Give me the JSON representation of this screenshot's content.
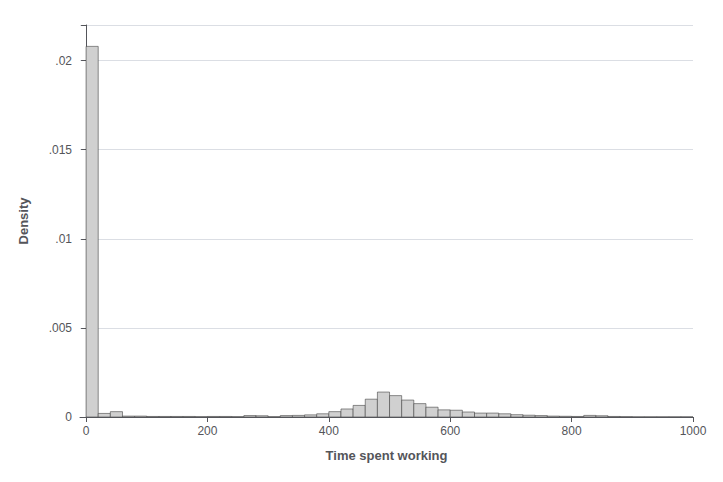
{
  "chart_data": {
    "type": "histogram",
    "xlabel": "Time spent working",
    "ylabel": "Density",
    "bins": [
      0,
      20,
      40,
      60,
      80,
      100,
      120,
      140,
      160,
      180,
      200,
      220,
      240,
      260,
      280,
      300,
      320,
      340,
      360,
      380,
      400,
      420,
      440,
      460,
      480,
      500,
      520,
      540,
      560,
      580,
      600,
      620,
      640,
      660,
      680,
      700,
      720,
      740,
      760,
      780,
      800,
      820,
      840,
      860,
      880,
      900,
      920,
      940,
      960,
      980,
      1000
    ],
    "values": [
      0.0208,
      0.0002,
      0.0003,
      5e-05,
      5e-05,
      3e-05,
      3e-05,
      3e-05,
      3e-05,
      2e-05,
      3e-05,
      3e-05,
      2e-05,
      8e-05,
      7e-05,
      2e-05,
      8e-05,
      9e-05,
      0.00012,
      0.00018,
      0.0003,
      0.00045,
      0.00065,
      0.001,
      0.0014,
      0.0012,
      0.00095,
      0.00075,
      0.00055,
      0.0004,
      0.00038,
      0.00028,
      0.00022,
      0.00022,
      0.00018,
      0.00013,
      0.0001,
      8e-05,
      5e-05,
      4e-05,
      3e-05,
      9e-05,
      7e-05,
      3e-05,
      2e-05,
      1e-05,
      1e-05,
      1e-05,
      1e-05,
      1e-05
    ],
    "color": "#d0d0d0",
    "xlim": [
      -10,
      1000
    ],
    "ylim": [
      0,
      0.022
    ],
    "xticks": [
      0,
      200,
      400,
      600,
      800,
      1000
    ],
    "yticks": [
      0,
      {
        "value": 0.005,
        "label": ".005"
      },
      {
        "value": 0.01,
        "label": ".01"
      },
      {
        "value": 0.015,
        "label": ".015"
      },
      {
        "value": 0.02,
        "label": ".02"
      }
    ],
    "grid": true
  }
}
